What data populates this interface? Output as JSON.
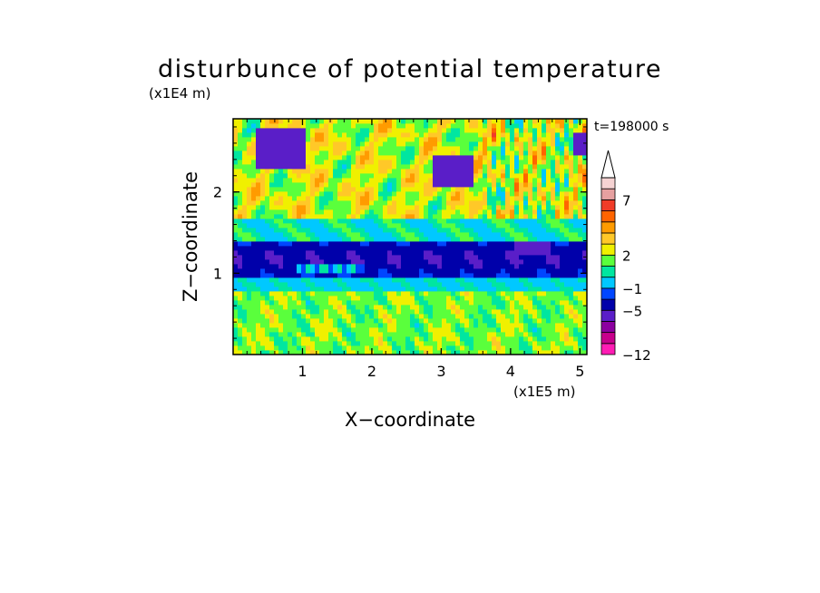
{
  "chart_data": {
    "type": "heatmap",
    "title": "disturbunce of potential temperature",
    "time_label": "t=198000 s",
    "xlabel": "X−coordinate",
    "ylabel": "Z−coordinate",
    "x_scale_label": "(x1E5 m)",
    "y_scale_label": "(x1E4 m)",
    "xlim": [
      0,
      5.1
    ],
    "ylim": [
      0,
      2.9
    ],
    "x_ticks": [
      1,
      2,
      3,
      4,
      5
    ],
    "y_ticks": [
      1,
      2
    ],
    "colorbar": {
      "extend": "max",
      "colors": [
        "#ff1cb4",
        "#c8008c",
        "#8c00a0",
        "#5a1ec8",
        "#0000aa",
        "#0046ff",
        "#00c8ff",
        "#00e6a0",
        "#5aff3c",
        "#f0f000",
        "#ffc828",
        "#ff9b00",
        "#ff6400",
        "#f03c28",
        "#e6a0a0",
        "#f5d2d2",
        "#ffffff"
      ],
      "tick_labels": [
        {
          "label": "−12",
          "value": -12
        },
        {
          "label": "−5",
          "value": -5
        },
        {
          "label": "−1",
          "value": -1
        },
        {
          "label": "2",
          "value": 2
        },
        {
          "label": "7",
          "value": 7
        }
      ]
    },
    "bands": [
      {
        "z_range": [
          0.0,
          0.4
        ],
        "dominant_levels": [
          1,
          2,
          3
        ],
        "note": "green/yellow/orange cells"
      },
      {
        "z_range": [
          0.4,
          0.75
        ],
        "dominant_levels": [
          1,
          2,
          3
        ]
      },
      {
        "z_range": [
          0.75,
          0.95
        ],
        "dominant_levels": [
          -1,
          0
        ]
      },
      {
        "z_range": [
          0.95,
          1.4
        ],
        "dominant_levels": [
          -5,
          -4,
          -3
        ]
      },
      {
        "z_range": [
          1.4,
          1.65
        ],
        "dominant_levels": [
          -1,
          0,
          1
        ]
      },
      {
        "z_range": [
          1.65,
          2.9
        ],
        "dominant_levels": [
          1,
          2,
          3,
          4,
          5,
          6
        ]
      }
    ]
  }
}
